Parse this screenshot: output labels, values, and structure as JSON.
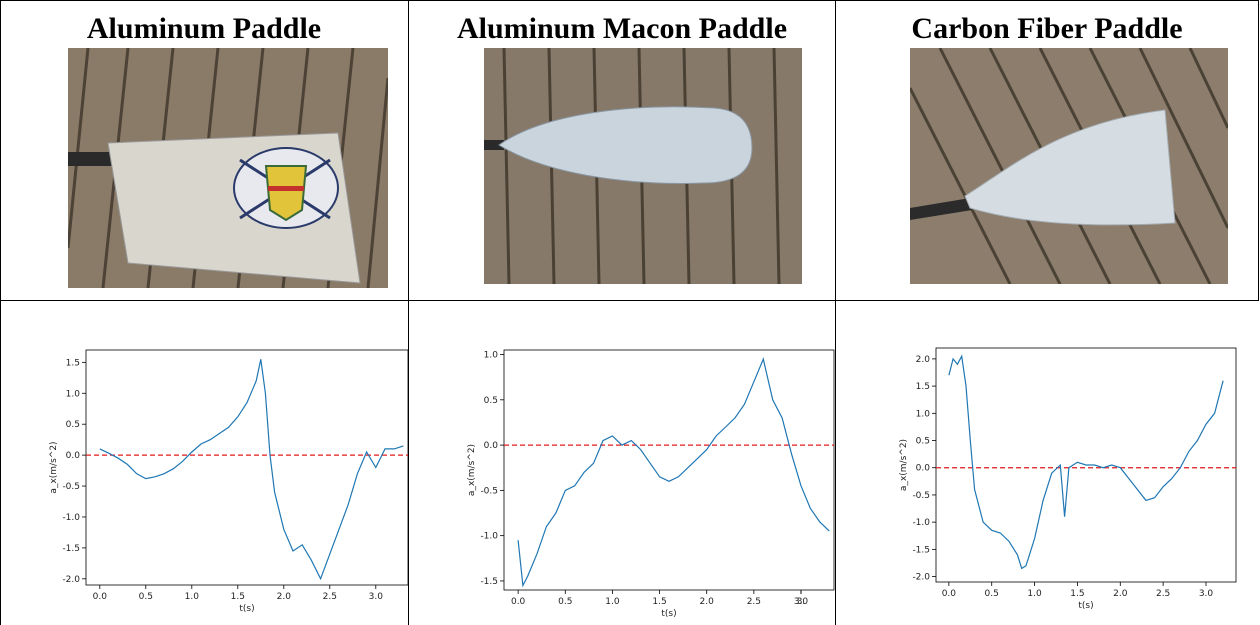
{
  "columns": [
    {
      "title": "Aluminum Paddle",
      "chart_data": {
        "type": "line",
        "xlabel": "t(s)",
        "ylabel": "a_x(m/s^2)",
        "xlim": [
          -0.15,
          3.35
        ],
        "ylim": [
          -2.1,
          1.7
        ],
        "xticks": [
          "0.0",
          "0.5",
          "1.0",
          "1.5",
          "2.0",
          "2.5",
          "3.0"
        ],
        "yticks": [
          "-2.0",
          "-1.5",
          "-1.0",
          "-0.5",
          "0.0",
          "0.5",
          "1.0",
          "1.5"
        ],
        "reference_line": {
          "y": 0.0,
          "color": "#e41a1c",
          "style": "dashed"
        },
        "series_color": "#1f77b4",
        "x": [
          0.0,
          0.1,
          0.2,
          0.3,
          0.4,
          0.5,
          0.6,
          0.7,
          0.8,
          0.9,
          1.0,
          1.1,
          1.2,
          1.3,
          1.4,
          1.5,
          1.6,
          1.7,
          1.75,
          1.8,
          1.85,
          1.9,
          2.0,
          2.1,
          2.2,
          2.3,
          2.4,
          2.5,
          2.6,
          2.7,
          2.8,
          2.9,
          3.0,
          3.1,
          3.2,
          3.3
        ],
        "y": [
          0.1,
          0.03,
          -0.05,
          -0.15,
          -0.3,
          -0.38,
          -0.35,
          -0.3,
          -0.22,
          -0.1,
          0.05,
          0.18,
          0.25,
          0.35,
          0.45,
          0.62,
          0.85,
          1.2,
          1.55,
          1.0,
          0.0,
          -0.6,
          -1.2,
          -1.55,
          -1.45,
          -1.7,
          -2.0,
          -1.6,
          -1.2,
          -0.8,
          -0.3,
          0.05,
          -0.2,
          0.1,
          0.1,
          0.15
        ]
      }
    },
    {
      "title": "Aluminum Macon Paddle",
      "chart_data": {
        "type": "line",
        "xlabel": "t(s)",
        "ylabel": "a_x(m/s^2)",
        "xlim": [
          -0.15,
          3.35
        ],
        "ylim": [
          -1.6,
          1.05
        ],
        "xticks": [
          "0.0",
          "0.5",
          "1.0",
          "1.5",
          "2.0",
          "2.5",
          "3.0",
          "3."
        ],
        "yticks": [
          "-1.5",
          "-1.0",
          "-0.5",
          "0.0",
          "0.5",
          "1.0"
        ],
        "reference_line": {
          "y": 0.0,
          "color": "#e41a1c",
          "style": "dashed"
        },
        "series_color": "#1f77b4",
        "x": [
          0.0,
          0.05,
          0.1,
          0.2,
          0.3,
          0.4,
          0.5,
          0.6,
          0.7,
          0.8,
          0.9,
          1.0,
          1.1,
          1.2,
          1.3,
          1.4,
          1.5,
          1.6,
          1.7,
          1.8,
          1.9,
          2.0,
          2.1,
          2.2,
          2.3,
          2.4,
          2.5,
          2.6,
          2.7,
          2.8,
          2.9,
          3.0,
          3.1,
          3.2,
          3.3
        ],
        "y": [
          -1.05,
          -1.55,
          -1.45,
          -1.2,
          -0.9,
          -0.75,
          -0.5,
          -0.45,
          -0.3,
          -0.2,
          0.05,
          0.1,
          0.0,
          0.05,
          -0.05,
          -0.2,
          -0.35,
          -0.4,
          -0.35,
          -0.25,
          -0.15,
          -0.05,
          0.1,
          0.2,
          0.3,
          0.45,
          0.7,
          0.95,
          0.5,
          0.3,
          -0.1,
          -0.45,
          -0.7,
          -0.85,
          -0.95
        ]
      }
    },
    {
      "title": "Carbon Fiber Paddle",
      "chart_data": {
        "type": "line",
        "xlabel": "t(s)",
        "ylabel": "a_x(m/s^2)",
        "xlim": [
          -0.15,
          3.35
        ],
        "ylim": [
          -2.1,
          2.2
        ],
        "xticks": [
          "0.0",
          "0.5",
          "1.0",
          "1.5",
          "2.0",
          "2.5",
          "3.0"
        ],
        "yticks": [
          "-2.0",
          "-1.5",
          "-1.0",
          "-0.5",
          "0.0",
          "0.5",
          "1.0",
          "1.5",
          "2.0"
        ],
        "reference_line": {
          "y": 0.0,
          "color": "#e41a1c",
          "style": "dashed"
        },
        "series_color": "#1f77b4",
        "x": [
          0.0,
          0.05,
          0.1,
          0.15,
          0.2,
          0.25,
          0.3,
          0.4,
          0.5,
          0.6,
          0.7,
          0.8,
          0.85,
          0.9,
          1.0,
          1.1,
          1.2,
          1.3,
          1.35,
          1.4,
          1.5,
          1.6,
          1.7,
          1.8,
          1.9,
          2.0,
          2.1,
          2.2,
          2.3,
          2.4,
          2.5,
          2.6,
          2.7,
          2.8,
          2.9,
          3.0,
          3.1,
          3.2
        ],
        "y": [
          1.7,
          2.0,
          1.9,
          2.05,
          1.5,
          0.5,
          -0.4,
          -1.0,
          -1.15,
          -1.2,
          -1.35,
          -1.6,
          -1.85,
          -1.8,
          -1.3,
          -0.6,
          -0.1,
          0.05,
          -0.9,
          0.0,
          0.1,
          0.05,
          0.05,
          0.0,
          0.05,
          0.0,
          -0.2,
          -0.4,
          -0.6,
          -0.55,
          -0.35,
          -0.2,
          0.0,
          0.3,
          0.5,
          0.8,
          1.0,
          1.6
        ]
      }
    }
  ]
}
